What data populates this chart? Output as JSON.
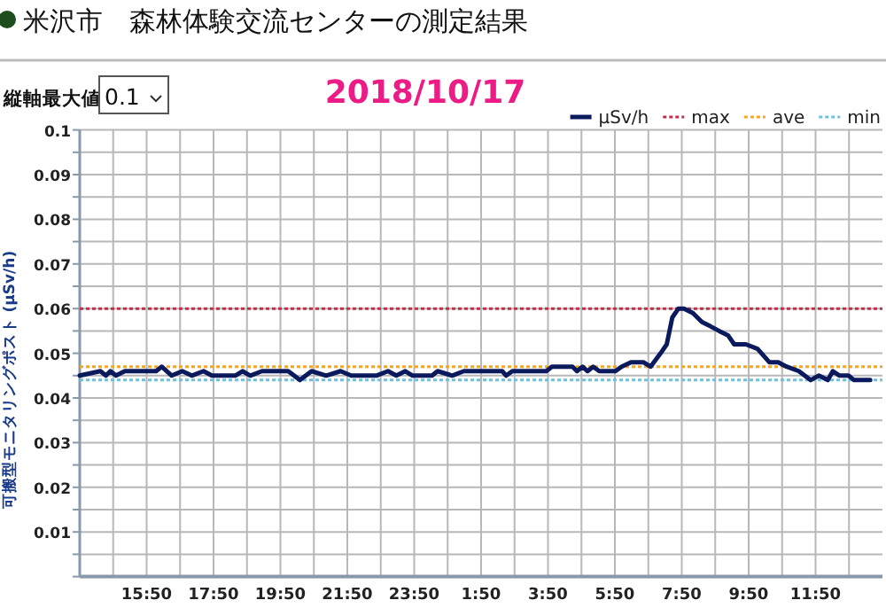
{
  "chart_data": {
    "type": "line",
    "title": "米沢市　森林体験交流センターの測定結果",
    "subtitle": "2018/10/17",
    "ylabel": "可搬型モニタリングポスト (μSv/h)",
    "annotations": [
      "縦軸最大値",
      "0.1"
    ],
    "xlim": [
      "2018-10-16T13:50",
      "2018-10-17T13:50"
    ],
    "xticks": [
      {
        "value": "2018-10-16T13:50",
        "label": null
      },
      {
        "value": "2018-10-16T14:50",
        "label": null
      },
      {
        "value": "2018-10-16T15:50",
        "label": "15:50"
      },
      {
        "value": "2018-10-16T16:50",
        "label": null
      },
      {
        "value": "2018-10-16T17:50",
        "label": "17:50"
      },
      {
        "value": "2018-10-16T18:50",
        "label": null
      },
      {
        "value": "2018-10-16T19:50",
        "label": "19:50"
      },
      {
        "value": "2018-10-16T20:50",
        "label": null
      },
      {
        "value": "2018-10-16T21:50",
        "label": "21:50"
      },
      {
        "value": "2018-10-16T22:50",
        "label": null
      },
      {
        "value": "2018-10-16T23:50",
        "label": "23:50"
      },
      {
        "value": "2018-10-17T00:50",
        "label": null
      },
      {
        "value": "2018-10-17T01:50",
        "label": "1:50"
      },
      {
        "value": "2018-10-17T02:50",
        "label": null
      },
      {
        "value": "2018-10-17T03:50",
        "label": "3:50"
      },
      {
        "value": "2018-10-17T04:50",
        "label": null
      },
      {
        "value": "2018-10-17T05:50",
        "label": "5:50"
      },
      {
        "value": "2018-10-17T06:50",
        "label": null
      },
      {
        "value": "2018-10-17T07:50",
        "label": "7:50"
      },
      {
        "value": "2018-10-17T08:50",
        "label": null
      },
      {
        "value": "2018-10-17T09:50",
        "label": "9:50"
      },
      {
        "value": "2018-10-17T10:50",
        "label": null
      },
      {
        "value": "2018-10-17T11:50",
        "label": "11:50"
      },
      {
        "value": "2018-10-17T12:50",
        "label": null
      }
    ],
    "ylim": [
      0,
      0.1
    ],
    "yticks": [
      {
        "value": 0,
        "label": null
      },
      {
        "value": 0.005,
        "label": null
      },
      0.01,
      {
        "value": 0.015,
        "label": null
      },
      0.02,
      {
        "value": 0.025,
        "label": null
      },
      0.03,
      {
        "value": 0.035,
        "label": null
      },
      0.04,
      {
        "value": 0.045,
        "label": null
      },
      0.05,
      {
        "value": 0.055,
        "label": null
      },
      0.06,
      {
        "value": 0.065,
        "label": null
      },
      0.07,
      {
        "value": 0.075,
        "label": null
      },
      0.08,
      {
        "value": 0.085,
        "label": null
      },
      0.09,
      {
        "value": 0.095,
        "label": null
      },
      0.1
    ],
    "grid": true,
    "legend": "top right",
    "line_style": "solid",
    "marker": "none",
    "series": [
      {
        "name": "μSv/h",
        "color": "#0a1a5c",
        "x": [
          "2018-10-16T13:50",
          "2018-10-16T14:27",
          "2018-10-16T14:37",
          "2018-10-16T14:45",
          "2018-10-16T14:55",
          "2018-10-16T15:11",
          "2018-10-16T16:07",
          "2018-10-16T16:17",
          "2018-10-16T16:35",
          "2018-10-16T16:54",
          "2018-10-16T17:11",
          "2018-10-16T17:32",
          "2018-10-16T17:47",
          "2018-10-16T18:29",
          "2018-10-16T18:42",
          "2018-10-16T18:56",
          "2018-10-16T19:17",
          "2018-10-16T20:04",
          "2018-10-16T20:25",
          "2018-10-16T20:46",
          "2018-10-16T21:12",
          "2018-10-16T21:38",
          "2018-10-16T21:57",
          "2018-10-16T22:42",
          "2018-10-16T23:03",
          "2018-10-16T23:18",
          "2018-10-16T23:34",
          "2018-10-16T23:47",
          "2018-10-17T00:22",
          "2018-10-17T00:32",
          "2018-10-17T00:58",
          "2018-10-17T01:19",
          "2018-10-17T02:28",
          "2018-10-17T02:35",
          "2018-10-17T02:46",
          "2018-10-17T03:47",
          "2018-10-17T03:57",
          "2018-10-17T04:34",
          "2018-10-17T04:42",
          "2018-10-17T04:52",
          "2018-10-17T05:01",
          "2018-10-17T05:11",
          "2018-10-17T05:22",
          "2018-10-17T05:51",
          "2018-10-17T06:02",
          "2018-10-17T06:19",
          "2018-10-17T06:41",
          "2018-10-17T06:54",
          "2018-10-17T07:12",
          "2018-10-17T07:23",
          "2018-10-17T07:33",
          "2018-10-17T07:44",
          "2018-10-17T07:54",
          "2018-10-17T08:10",
          "2018-10-17T08:26",
          "2018-10-17T08:42",
          "2018-10-17T08:57",
          "2018-10-17T09:13",
          "2018-10-17T09:24",
          "2018-10-17T09:45",
          "2018-10-17T10:06",
          "2018-10-17T10:27",
          "2018-10-17T10:43",
          "2018-10-17T10:58",
          "2018-10-17T11:20",
          "2018-10-17T11:41",
          "2018-10-17T11:56",
          "2018-10-17T12:12",
          "2018-10-17T12:21",
          "2018-10-17T12:33",
          "2018-10-17T12:49",
          "2018-10-17T12:59",
          "2018-10-17T13:28"
        ],
        "values": [
          0.045,
          0.046,
          0.045,
          0.046,
          0.045,
          0.046,
          0.046,
          0.047,
          0.045,
          0.046,
          0.045,
          0.046,
          0.045,
          0.045,
          0.046,
          0.045,
          0.046,
          0.046,
          0.044,
          0.046,
          0.045,
          0.046,
          0.045,
          0.045,
          0.046,
          0.045,
          0.046,
          0.045,
          0.045,
          0.046,
          0.045,
          0.046,
          0.046,
          0.045,
          0.046,
          0.046,
          0.047,
          0.047,
          0.046,
          0.047,
          0.046,
          0.047,
          0.046,
          0.046,
          0.047,
          0.048,
          0.048,
          0.047,
          0.05,
          0.052,
          0.058,
          0.06,
          0.06,
          0.059,
          0.057,
          0.056,
          0.055,
          0.054,
          0.052,
          0.052,
          0.051,
          0.048,
          0.048,
          0.047,
          0.046,
          0.044,
          0.045,
          0.044,
          0.046,
          0.045,
          0.045,
          0.044,
          0.044
        ]
      }
    ],
    "ref_lines": [
      {
        "axis": "y",
        "value": 0.06,
        "label": "max",
        "color": "#c0304a",
        "line_style": "dotted"
      },
      {
        "axis": "y",
        "value": 0.047,
        "label": "ave",
        "color": "#f5a623",
        "line_style": "dotted"
      },
      {
        "axis": "y",
        "value": 0.044,
        "label": "min",
        "color": "#6cc0e0",
        "line_style": "dotted"
      }
    ]
  }
}
